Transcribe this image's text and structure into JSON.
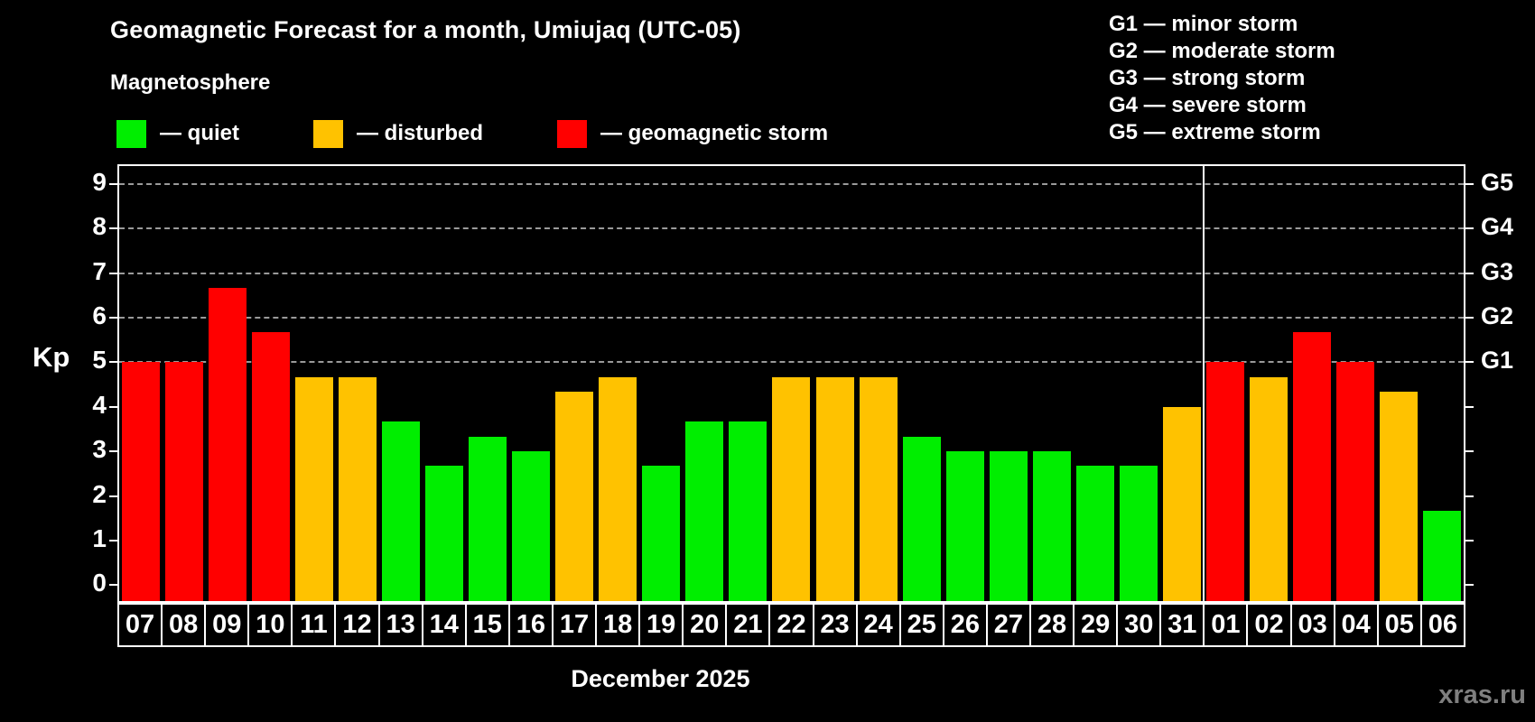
{
  "title": "Geomagnetic Forecast for a month, Umiujaq (UTC-05)",
  "subtitle": "Magnetosphere",
  "legend": {
    "items": [
      {
        "key": "quiet",
        "label": "— quiet"
      },
      {
        "key": "disturbed",
        "label": "— disturbed"
      },
      {
        "key": "storm",
        "label": "— geomagnetic storm"
      }
    ]
  },
  "g_legend": [
    "G1 — minor storm",
    "G2 — moderate storm",
    "G3 — strong storm",
    "G4 — severe storm",
    "G5 — extreme storm"
  ],
  "axis": {
    "y_title": "Kp",
    "kp_ticks": [
      0,
      1,
      2,
      3,
      4,
      5,
      6,
      7,
      8,
      9
    ],
    "g_scale": [
      {
        "label": "G1",
        "kp": 5
      },
      {
        "label": "G2",
        "kp": 6
      },
      {
        "label": "G3",
        "kp": 7
      },
      {
        "label": "G4",
        "kp": 8
      },
      {
        "label": "G5",
        "kp": 9
      }
    ],
    "grid_kp": [
      5,
      6,
      7,
      8,
      9
    ]
  },
  "x_title": "December 2025",
  "watermark": "xras.ru",
  "colors": {
    "quiet": "#00ee00",
    "disturbed": "#ffc200",
    "storm": "#ff0000",
    "frame": "#ffffff",
    "grid": "#9a9a9a",
    "text": "#ffffff",
    "watermark": "#7f7f7f",
    "background": "#000000"
  },
  "chart_data": {
    "type": "bar",
    "title": "Geomagnetic Forecast for a month, Umiujaq (UTC-05)",
    "xlabel": "December 2025",
    "ylabel": "Kp",
    "ylim": [
      0,
      9
    ],
    "grid": "horizontal dashed lines at Kp 5,6,7,8,9 (G1–G5)",
    "legend_position": "top-left (status colors), top-right (G scale)",
    "month_separator_after_index": 24,
    "categories": [
      "07",
      "08",
      "09",
      "10",
      "11",
      "12",
      "13",
      "14",
      "15",
      "16",
      "17",
      "18",
      "19",
      "20",
      "21",
      "22",
      "23",
      "24",
      "25",
      "26",
      "27",
      "28",
      "29",
      "30",
      "31",
      "01",
      "02",
      "03",
      "04",
      "05",
      "06"
    ],
    "values": [
      5,
      5,
      6.67,
      5.67,
      4.67,
      4.67,
      3.67,
      2.67,
      3.33,
      3,
      4.33,
      4.67,
      2.67,
      3.67,
      3.67,
      4.67,
      4.67,
      4.67,
      3.33,
      3,
      3,
      3,
      2.67,
      2.67,
      4,
      5,
      4.67,
      5.67,
      5,
      4.33,
      1.67
    ],
    "statuses": [
      "storm",
      "storm",
      "storm",
      "storm",
      "disturbed",
      "disturbed",
      "quiet",
      "quiet",
      "quiet",
      "quiet",
      "disturbed",
      "disturbed",
      "quiet",
      "quiet",
      "quiet",
      "disturbed",
      "disturbed",
      "disturbed",
      "quiet",
      "quiet",
      "quiet",
      "quiet",
      "quiet",
      "quiet",
      "disturbed",
      "storm",
      "disturbed",
      "storm",
      "storm",
      "disturbed",
      "quiet"
    ]
  }
}
